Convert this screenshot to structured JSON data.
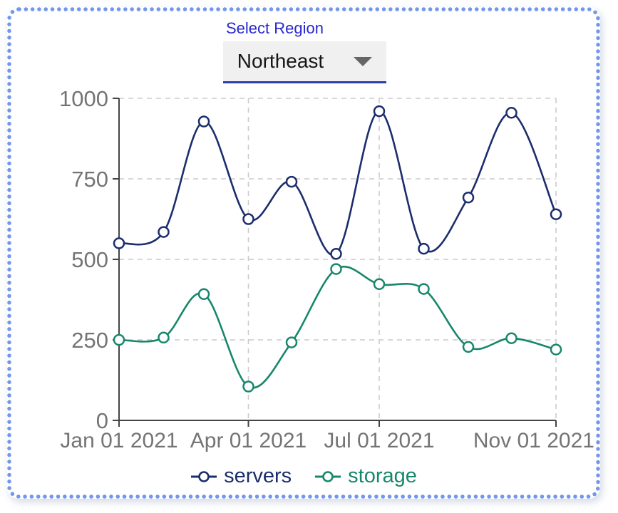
{
  "controls": {
    "label": "Select Region",
    "value": "Northeast"
  },
  "colors": {
    "border_dots": "#7297ec",
    "select_label": "#2727cf",
    "dropdown_underline": "#2b3cae",
    "dropdown_background": "#f0f0f1",
    "axis": "#444444",
    "tick_text": "#747474",
    "gridline": "#cbcbcb",
    "servers": "#1b2d6d",
    "storage": "#17876c"
  },
  "chart_data": {
    "type": "line",
    "line_shape": "spline",
    "marker": "open-circle",
    "grid": true,
    "legend_position": "bottom-center",
    "x": [
      "Jan 01 2021",
      "Feb 01 2021",
      "Mar 01 2021",
      "Apr 01 2021",
      "May 01 2021",
      "Jun 01 2021",
      "Jul 01 2021",
      "Aug 01 2021",
      "Sep 01 2021",
      "Oct 01 2021",
      "Nov 01 2021"
    ],
    "x_days": [
      0,
      31,
      59,
      90,
      120,
      151,
      181,
      212,
      243,
      273,
      304
    ],
    "series": [
      {
        "name": "servers",
        "color": "#1b2d6d",
        "values": [
          550,
          585,
          928,
          625,
          741,
          517,
          960,
          533,
          692,
          955,
          640
        ]
      },
      {
        "name": "storage",
        "color": "#17876c",
        "values": [
          250,
          257,
          392,
          105,
          242,
          470,
          423,
          408,
          228,
          255,
          220
        ]
      }
    ],
    "x_ticks": [
      {
        "day": 0,
        "label": "Jan 01 2021"
      },
      {
        "day": 90,
        "label": "Apr 01 2021"
      },
      {
        "day": 181,
        "label": "Jul 01 2021"
      },
      {
        "day": 304,
        "label": "Nov 01 2021"
      }
    ],
    "y_ticks": [
      0,
      250,
      500,
      750,
      1000
    ],
    "ylim": [
      0,
      1000
    ],
    "xlabel": "",
    "ylabel": "",
    "title": ""
  }
}
